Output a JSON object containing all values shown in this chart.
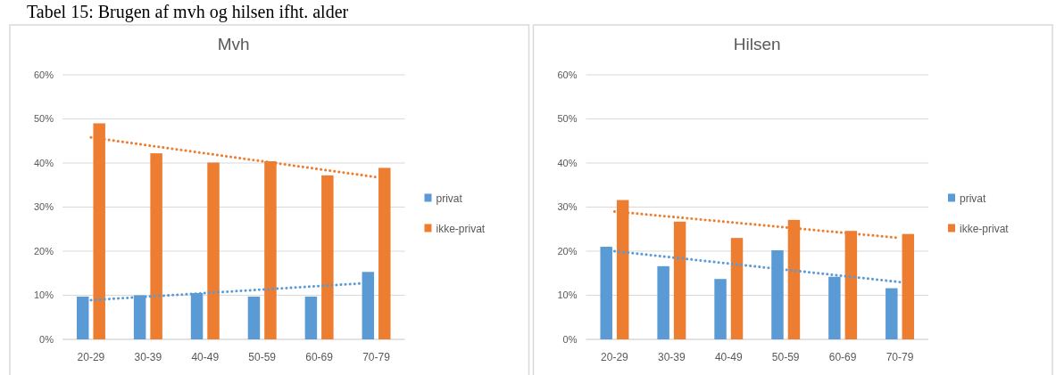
{
  "chart_data": [
    {
      "type": "bar",
      "title": "Mvh",
      "annotations": [
        "Tabel 15: Brugen af mvh og hilsen ifht. alder"
      ],
      "categories": [
        "20-29",
        "30-39",
        "40-49",
        "50-59",
        "60-69",
        "70-79"
      ],
      "series": [
        {
          "name": "privat",
          "color": "#5b9bd5",
          "values": [
            9.7,
            10,
            10.5,
            9.7,
            9.7,
            15.3
          ]
        },
        {
          "name": "ikke-privat",
          "color": "#ed7d31",
          "values": [
            49,
            42.2,
            40.1,
            40.4,
            37.2,
            38.9
          ]
        },
        {
          "type": "line",
          "color": "#5b9bd5",
          "line_style": "dotted",
          "x": [
            "20-29",
            "70-79"
          ],
          "values": [
            8.9,
            12.9
          ]
        },
        {
          "type": "line",
          "color": "#ed7d31",
          "line_style": "dotted",
          "x": [
            "20-29",
            "70-79"
          ],
          "values": [
            45.8,
            36.8
          ]
        }
      ],
      "ylim": [
        0,
        60
      ],
      "yticks": [
        {
          "value": 0,
          "label": "0%"
        },
        {
          "value": 10,
          "label": "10%"
        },
        {
          "value": 20,
          "label": "20%"
        },
        {
          "value": 30,
          "label": "30%"
        },
        {
          "value": 40,
          "label": "40%"
        },
        {
          "value": 50,
          "label": "50%"
        },
        {
          "value": 60,
          "label": "60%"
        }
      ],
      "grid": "y",
      "legend": "right"
    },
    {
      "type": "bar",
      "title": "Hilsen",
      "categories": [
        "20-29",
        "30-39",
        "40-49",
        "50-59",
        "60-69",
        "70-79"
      ],
      "series": [
        {
          "name": "privat",
          "color": "#5b9bd5",
          "values": [
            21,
            16.6,
            13.7,
            20.2,
            14.2,
            11.6
          ]
        },
        {
          "name": "ikke-privat",
          "color": "#ed7d31",
          "values": [
            31.6,
            26.7,
            23,
            27.1,
            24.6,
            23.9
          ]
        },
        {
          "type": "line",
          "color": "#5b9bd5",
          "line_style": "dotted",
          "x": [
            "20-29",
            "70-79"
          ],
          "values": [
            20,
            13
          ]
        },
        {
          "type": "line",
          "color": "#ed7d31",
          "line_style": "dotted",
          "x": [
            "20-29",
            "70-79"
          ],
          "values": [
            29,
            23
          ]
        }
      ],
      "ylim": [
        0,
        60
      ],
      "yticks": [
        {
          "value": 0,
          "label": "0%"
        },
        {
          "value": 10,
          "label": "10%"
        },
        {
          "value": 20,
          "label": "20%"
        },
        {
          "value": 30,
          "label": "30%"
        },
        {
          "value": 40,
          "label": "40%"
        },
        {
          "value": 50,
          "label": "50%"
        },
        {
          "value": 60,
          "label": "60%"
        }
      ],
      "grid": "y",
      "legend": "right"
    }
  ]
}
